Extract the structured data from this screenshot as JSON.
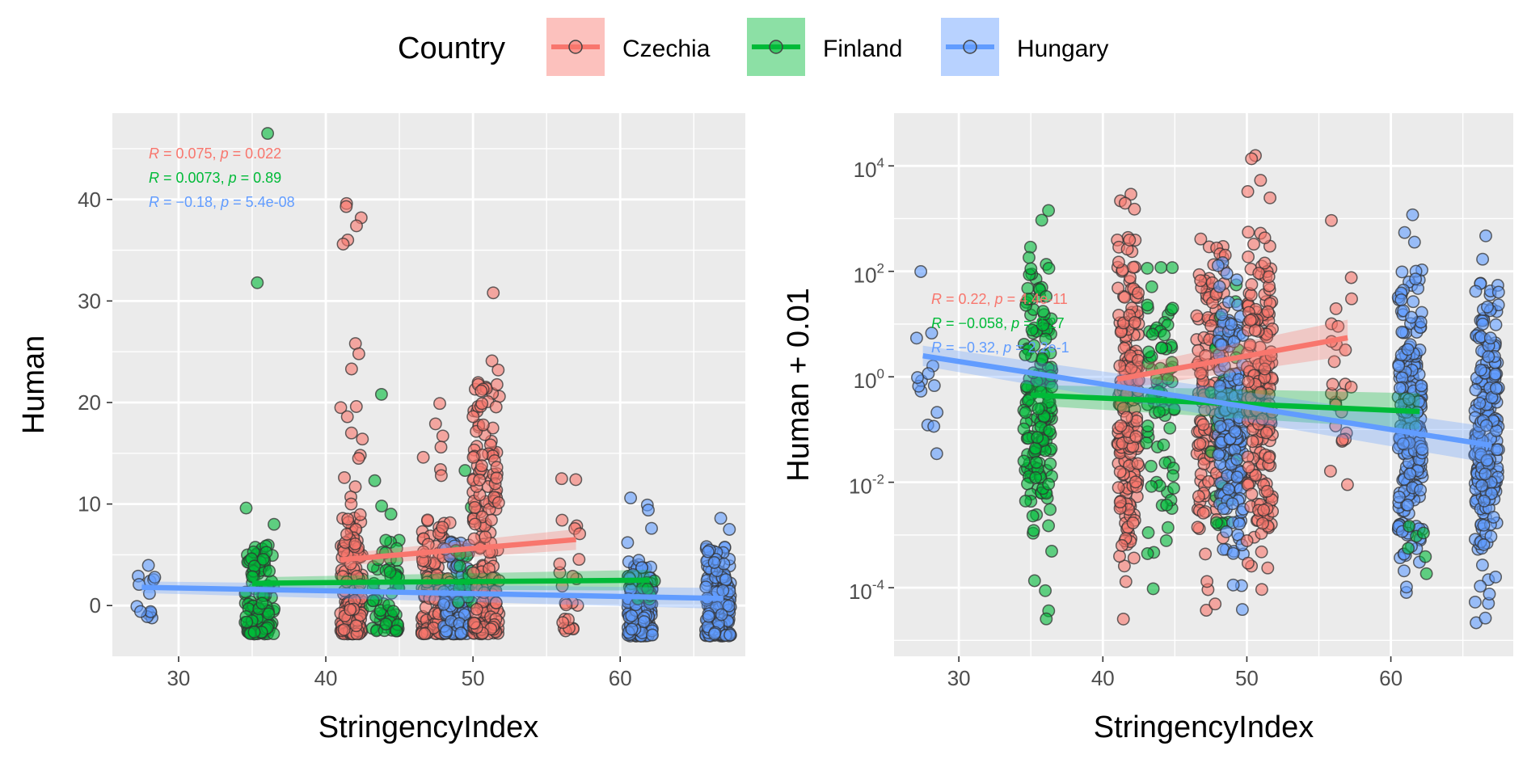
{
  "legend": {
    "title": "Country",
    "entries": [
      {
        "name": "Czechia",
        "color": "#F8766D"
      },
      {
        "name": "Finland",
        "color": "#00BA38"
      },
      {
        "name": "Hungary",
        "color": "#619CFF"
      }
    ]
  },
  "chart_data": [
    {
      "type": "scatter",
      "panel": "left",
      "xlabel": "StringencyIndex",
      "ylabel": "Human",
      "xlim": [
        25.5,
        68.5
      ],
      "ylim": [
        -5,
        48.5
      ],
      "xticks": [
        30,
        40,
        50,
        60
      ],
      "yticks": [
        0,
        10,
        20,
        30,
        40
      ],
      "grid": true,
      "yscale": "linear",
      "annotations": [
        {
          "country": "Czechia",
          "R": "0.075",
          "p": "0.022"
        },
        {
          "country": "Finland",
          "R": "0.0073",
          "p": "0.89"
        },
        {
          "country": "Hungary",
          "R": "−0.18",
          "p": "5.4e-08"
        }
      ],
      "trend_lines": [
        {
          "country": "Czechia",
          "x": [
            41,
            57
          ],
          "y": [
            4.5,
            6.5
          ]
        },
        {
          "country": "Finland",
          "x": [
            35,
            62
          ],
          "y": [
            2.2,
            2.5
          ]
        },
        {
          "country": "Hungary",
          "x": [
            27.5,
            67
          ],
          "y": [
            1.8,
            0.7
          ]
        }
      ],
      "point_clusters": [
        {
          "country": "Hungary",
          "x_range": [
            27,
            28.5
          ],
          "count": 14,
          "y_min": -1.5,
          "y_max": 4,
          "outliers": []
        },
        {
          "country": "Finland",
          "x_range": [
            34.5,
            36.5
          ],
          "count": 130,
          "y_min": -2.8,
          "y_max": 6,
          "outliers": [
            46.5,
            31.8,
            9.6,
            8
          ]
        },
        {
          "country": "Czechia",
          "x_range": [
            41,
            42.5
          ],
          "count": 140,
          "y_min": -2.8,
          "y_max": 9,
          "outliers": [
            39.6,
            39.3,
            38.2,
            37.4,
            36,
            35.6,
            25.8,
            24.8,
            23.3,
            19.6,
            19.5,
            18.6,
            17,
            16.4,
            14.8,
            14.5,
            12.6,
            11.7,
            10.7,
            10
          ]
        },
        {
          "country": "Finland",
          "x_range": [
            43,
            45
          ],
          "count": 60,
          "y_min": -2.5,
          "y_max": 7,
          "outliers": [
            20.8,
            12.3,
            9.8,
            9
          ]
        },
        {
          "country": "Czechia",
          "x_range": [
            46.5,
            48.5
          ],
          "count": 120,
          "y_min": -2.8,
          "y_max": 9,
          "outliers": [
            19.9,
            17.9,
            16.7,
            15.6,
            14.6,
            13.4,
            12.8
          ]
        },
        {
          "country": "Hungary",
          "x_range": [
            48,
            49.8
          ],
          "count": 120,
          "y_min": -2.8,
          "y_max": 6.8,
          "outliers": []
        },
        {
          "country": "Finland",
          "x_range": [
            48.8,
            50
          ],
          "count": 12,
          "y_min": 0,
          "y_max": 7,
          "outliers": [
            13.3,
            9.7
          ]
        },
        {
          "country": "Czechia",
          "x_range": [
            50,
            51.8
          ],
          "count": 180,
          "y_min": -2.8,
          "y_max": 22,
          "outliers": [
            30.8,
            24.1,
            23.2
          ]
        },
        {
          "country": "Czechia",
          "x_range": [
            55.8,
            57.3
          ],
          "count": 22,
          "y_min": -2.5,
          "y_max": 8.5,
          "outliers": [
            12.5,
            12.4
          ]
        },
        {
          "country": "Hungary",
          "x_range": [
            60.5,
            62.2
          ],
          "count": 160,
          "y_min": -3,
          "y_max": 4.5,
          "outliers": [
            10.6,
            9.9,
            9.4,
            7.6,
            6.2
          ]
        },
        {
          "country": "Finland",
          "x_range": [
            61,
            62.5
          ],
          "count": 8,
          "y_min": 0,
          "y_max": 3,
          "outliers": []
        },
        {
          "country": "Hungary",
          "x_range": [
            65.8,
            67.5
          ],
          "count": 160,
          "y_min": -3,
          "y_max": 6,
          "outliers": [
            8.6,
            7.5
          ]
        }
      ]
    },
    {
      "type": "scatter",
      "panel": "right",
      "xlabel": "StringencyIndex",
      "ylabel": "Human + 0.01",
      "xlim": [
        25.5,
        68.5
      ],
      "ylim": [
        5e-06,
        100000
      ],
      "xticks": [
        30,
        40,
        50,
        60
      ],
      "yticks": [
        0.0001,
        0.01,
        1,
        100,
        10000
      ],
      "ytick_labels": [
        {
          "base": "10",
          "exp": "-4"
        },
        {
          "base": "10",
          "exp": "-2"
        },
        {
          "base": "10",
          "exp": "0"
        },
        {
          "base": "10",
          "exp": "2"
        },
        {
          "base": "10",
          "exp": "4"
        }
      ],
      "grid": true,
      "yscale": "log10",
      "annotations": [
        {
          "country": "Czechia",
          "R": "0.22",
          "p": "4.4e-11"
        },
        {
          "country": "Finland",
          "R": "−0.058",
          "p": "0.27"
        },
        {
          "country": "Hungary",
          "R": "−0.32",
          "p": "2.2e-1"
        }
      ],
      "trend_lines": [
        {
          "country": "Czechia",
          "x": [
            41,
            57
          ],
          "y": [
            0.9,
            5.5
          ]
        },
        {
          "country": "Finland",
          "x": [
            35,
            62
          ],
          "y": [
            0.45,
            0.22
          ]
        },
        {
          "country": "Hungary",
          "x": [
            27.5,
            67
          ],
          "y": [
            2.5,
            0.05
          ]
        }
      ],
      "point_clusters": [
        {
          "country": "Hungary",
          "x_range": [
            27,
            28.5
          ],
          "count": 14,
          "log_min": -2.6,
          "log_max": 2.2
        },
        {
          "country": "Finland",
          "x_range": [
            34.5,
            36.5
          ],
          "count": 170,
          "log_min": -4.7,
          "log_max": 3.4
        },
        {
          "country": "Czechia",
          "x_range": [
            41,
            42.5
          ],
          "count": 190,
          "log_min": -4.9,
          "log_max": 3.9
        },
        {
          "country": "Finland",
          "x_range": [
            43,
            45
          ],
          "count": 80,
          "log_min": -4.7,
          "log_max": 3.7
        },
        {
          "country": "Czechia",
          "x_range": [
            46.5,
            48.5
          ],
          "count": 150,
          "log_min": -4.5,
          "log_max": 4.2
        },
        {
          "country": "Finland",
          "x_range": [
            47.5,
            49.5
          ],
          "count": 40,
          "log_min": -4.8,
          "log_max": 3.8
        },
        {
          "country": "Hungary",
          "x_range": [
            48,
            49.8
          ],
          "count": 170,
          "log_min": -4.8,
          "log_max": 3.3
        },
        {
          "country": "Czechia",
          "x_range": [
            50,
            51.8
          ],
          "count": 210,
          "log_min": -4.7,
          "log_max": 4.2
        },
        {
          "country": "Czechia",
          "x_range": [
            55.8,
            57.3
          ],
          "count": 25,
          "log_min": -2.7,
          "log_max": 3.8
        },
        {
          "country": "Hungary",
          "x_range": [
            60.5,
            62.2
          ],
          "count": 220,
          "log_min": -4.9,
          "log_max": 3.3
        },
        {
          "country": "Finland",
          "x_range": [
            61,
            62.5
          ],
          "count": 6,
          "log_min": -4.2,
          "log_max": -2
        },
        {
          "country": "Hungary",
          "x_range": [
            65.8,
            67.5
          ],
          "count": 220,
          "log_min": -4.9,
          "log_max": 3.3
        }
      ]
    }
  ]
}
